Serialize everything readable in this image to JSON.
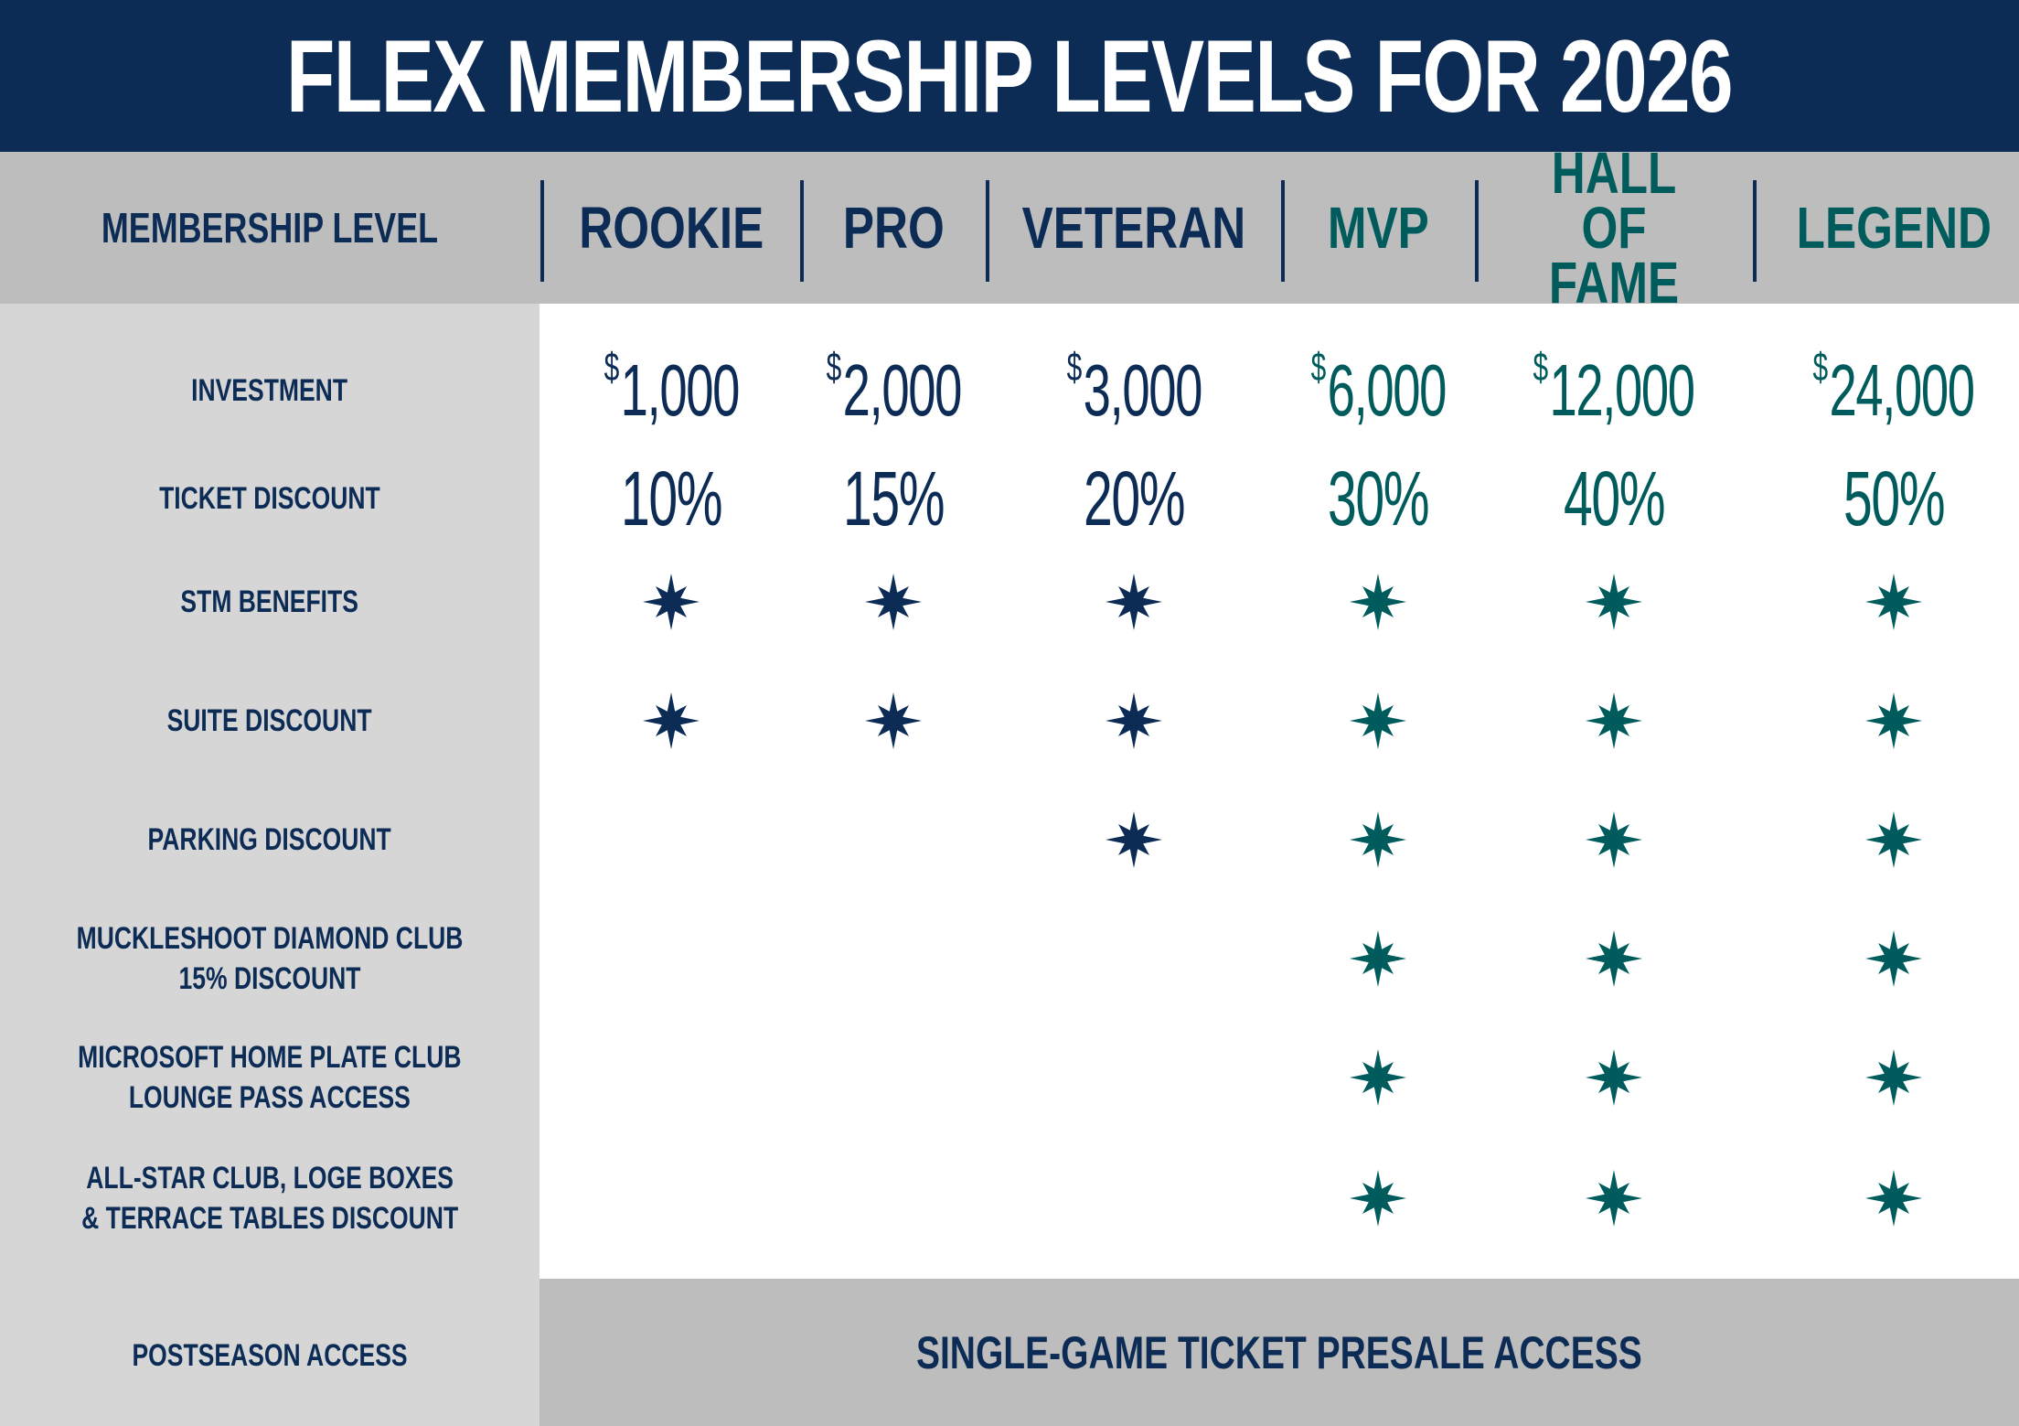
{
  "title": "FLEX MEMBERSHIP LEVELS FOR 2026",
  "header": {
    "label": "MEMBERSHIP LEVEL",
    "levels": [
      {
        "name": "ROOKIE",
        "color": "#0c2c56"
      },
      {
        "name": "PRO",
        "color": "#0c2c56"
      },
      {
        "name": "VETERAN",
        "color": "#0c2c56"
      },
      {
        "name": "MVP",
        "color": "#005c5c"
      },
      {
        "name": "HALL\nOF FAME",
        "color": "#005c5c"
      },
      {
        "name": "LEGEND",
        "color": "#005c5c"
      }
    ]
  },
  "rows": {
    "investment": {
      "label": "INVESTMENT",
      "currency_symbol": "$",
      "values": [
        "1,000",
        "2,000",
        "3,000",
        "6,000",
        "12,000",
        "24,000"
      ]
    },
    "ticket_discount": {
      "label": "TICKET DISCOUNT",
      "values": [
        "10%",
        "15%",
        "20%",
        "30%",
        "40%",
        "50%"
      ]
    },
    "benefits": [
      {
        "label": "STM BENEFITS",
        "included": [
          true,
          true,
          true,
          true,
          true,
          true
        ]
      },
      {
        "label": "SUITE DISCOUNT",
        "included": [
          true,
          true,
          true,
          true,
          true,
          true
        ]
      },
      {
        "label": "PARKING DISCOUNT",
        "included": [
          false,
          false,
          true,
          true,
          true,
          true
        ]
      },
      {
        "label": "MUCKLESHOOT DIAMOND CLUB\n15% DISCOUNT",
        "included": [
          false,
          false,
          false,
          true,
          true,
          true
        ]
      },
      {
        "label": "MICROSOFT HOME PLATE CLUB\nLOUNGE PASS ACCESS",
        "included": [
          false,
          false,
          false,
          true,
          true,
          true
        ]
      },
      {
        "label": "ALL-STAR CLUB, LOGE BOXES\n& TERRACE TABLES DISCOUNT",
        "included": [
          false,
          false,
          false,
          true,
          true,
          true
        ]
      }
    ],
    "postseason": {
      "label": "POSTSEASON ACCESS",
      "value": "SINGLE-GAME TICKET PRESALE ACCESS"
    }
  },
  "icons": {
    "included_mark": "compass-star-icon"
  },
  "colors": {
    "navy": "#0c2c56",
    "teal": "#005c5c",
    "header_gray": "#bdbdbd",
    "label_gray": "#d6d6d6"
  }
}
